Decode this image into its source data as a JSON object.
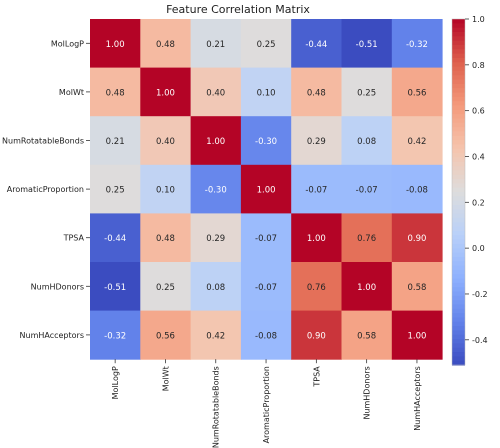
{
  "chart_data": {
    "type": "heatmap",
    "title": "Feature Correlation Matrix",
    "xlabel": "",
    "ylabel": "",
    "labels": [
      "MolLogP",
      "MolWt",
      "NumRotatableBonds",
      "AromaticProportion",
      "TPSA",
      "NumHDonors",
      "NumHAcceptors"
    ],
    "values": [
      [
        1.0,
        0.48,
        0.21,
        0.25,
        -0.44,
        -0.51,
        -0.32
      ],
      [
        0.48,
        1.0,
        0.4,
        0.1,
        0.48,
        0.25,
        0.56
      ],
      [
        0.21,
        0.4,
        1.0,
        -0.3,
        0.29,
        0.08,
        0.42
      ],
      [
        0.25,
        0.1,
        -0.3,
        1.0,
        -0.07,
        -0.07,
        -0.08
      ],
      [
        -0.44,
        0.48,
        0.29,
        -0.07,
        1.0,
        0.76,
        0.9
      ],
      [
        -0.51,
        0.25,
        0.08,
        -0.07,
        0.76,
        1.0,
        0.58
      ],
      [
        -0.32,
        0.56,
        0.42,
        -0.08,
        0.9,
        0.58,
        1.0
      ]
    ],
    "value_format": "2 decimals",
    "colormap": "coolwarm",
    "color_range": [
      -0.51,
      1.0
    ],
    "colorbar_ticks": [
      "1.0",
      "0.8",
      "0.6",
      "0.4",
      "0.2",
      "0.0",
      "-0.2",
      "-0.4"
    ],
    "colorbar_tick_values": [
      1.0,
      0.8,
      0.6,
      0.4,
      0.2,
      0.0,
      -0.2,
      -0.4
    ],
    "colors": {
      "low": "#3b4cc0",
      "mid": "#dddddd",
      "high": "#b40426"
    }
  }
}
